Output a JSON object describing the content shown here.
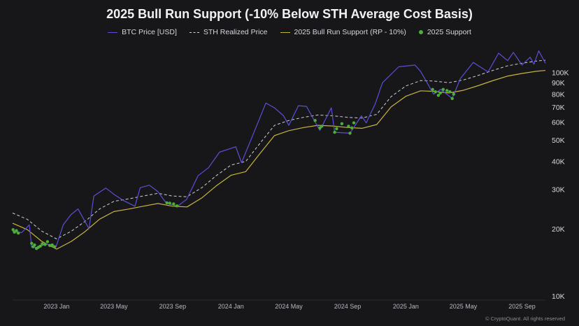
{
  "title": "2025 Bull Run Support (-10% Below STH Average Cost Basis)",
  "legend": {
    "price": "BTC Price [USD]",
    "sth": "STH Realized Price",
    "support": "2025 Bull Run Support (RP - 10%)",
    "dots": "2025 Support"
  },
  "watermark": "© CryptoQuant. All rights reserved",
  "colors": {
    "background": "#17171a",
    "price": "#5b4fd6",
    "sth": "#cfcfd6",
    "support": "#c8b43a",
    "dots": "#4caf3a"
  },
  "chart_data": {
    "type": "line",
    "y_scale": "log",
    "ylim": [
      10000,
      135000
    ],
    "xlim": [
      "2022-10-01",
      "2025-10-20"
    ],
    "grid": false,
    "legend_position": "top",
    "y_ticks": [
      {
        "value": 10000,
        "label": "10K"
      },
      {
        "value": 20000,
        "label": "20K"
      },
      {
        "value": 30000,
        "label": "30K"
      },
      {
        "value": 40000,
        "label": "40K"
      },
      {
        "value": 50000,
        "label": "50K"
      },
      {
        "value": 60000,
        "label": "60K"
      },
      {
        "value": 70000,
        "label": "70K"
      },
      {
        "value": 80000,
        "label": "80K"
      },
      {
        "value": 90000,
        "label": "90K"
      },
      {
        "value": 100000,
        "label": "100K"
      }
    ],
    "x_ticks": [
      {
        "date": "2023-01-01",
        "label": "2023 Jan"
      },
      {
        "date": "2023-05-01",
        "label": "2023 May"
      },
      {
        "date": "2023-09-01",
        "label": "2023 Sep"
      },
      {
        "date": "2024-01-01",
        "label": "2024 Jan"
      },
      {
        "date": "2024-05-01",
        "label": "2024 May"
      },
      {
        "date": "2024-09-01",
        "label": "2024 Sep"
      },
      {
        "date": "2025-01-01",
        "label": "2025 Jan"
      },
      {
        "date": "2025-05-01",
        "label": "2025 May"
      },
      {
        "date": "2025-09-01",
        "label": "2025 Sep"
      }
    ],
    "series": [
      {
        "name": "BTC Price [USD]",
        "points": [
          [
            "2022-10-01",
            19400
          ],
          [
            "2022-10-20",
            19200
          ],
          [
            "2022-11-05",
            20800
          ],
          [
            "2022-11-10",
            16500
          ],
          [
            "2022-11-25",
            16500
          ],
          [
            "2022-12-10",
            17100
          ],
          [
            "2022-12-31",
            16600
          ],
          [
            "2023-01-15",
            20800
          ],
          [
            "2023-01-31",
            23100
          ],
          [
            "2023-02-15",
            24500
          ],
          [
            "2023-03-10",
            20000
          ],
          [
            "2023-03-20",
            28000
          ],
          [
            "2023-04-14",
            30400
          ],
          [
            "2023-05-01",
            28500
          ],
          [
            "2023-05-20",
            26800
          ],
          [
            "2023-06-14",
            25200
          ],
          [
            "2023-06-25",
            30500
          ],
          [
            "2023-07-14",
            31300
          ],
          [
            "2023-08-01",
            29300
          ],
          [
            "2023-08-18",
            26100
          ],
          [
            "2023-09-11",
            25200
          ],
          [
            "2023-09-30",
            27000
          ],
          [
            "2023-10-24",
            34500
          ],
          [
            "2023-11-15",
            37500
          ],
          [
            "2023-12-08",
            44000
          ],
          [
            "2024-01-11",
            46500
          ],
          [
            "2024-01-23",
            39500
          ],
          [
            "2024-02-15",
            52000
          ],
          [
            "2024-03-14",
            73000
          ],
          [
            "2024-04-01",
            69500
          ],
          [
            "2024-04-20",
            64000
          ],
          [
            "2024-05-01",
            58000
          ],
          [
            "2024-05-21",
            71000
          ],
          [
            "2024-06-07",
            70500
          ],
          [
            "2024-07-05",
            55000
          ],
          [
            "2024-07-29",
            69500
          ],
          [
            "2024-08-05",
            54000
          ],
          [
            "2024-09-06",
            53500
          ],
          [
            "2024-09-30",
            64000
          ],
          [
            "2024-10-10",
            59500
          ],
          [
            "2024-10-29",
            72500
          ],
          [
            "2024-11-13",
            90000
          ],
          [
            "2024-12-17",
            106000
          ],
          [
            "2025-01-20",
            108000
          ],
          [
            "2025-02-01",
            101000
          ],
          [
            "2025-02-28",
            80000
          ],
          [
            "2025-03-15",
            84000
          ],
          [
            "2025-04-08",
            76500
          ],
          [
            "2025-04-25",
            94000
          ],
          [
            "2025-05-22",
            111000
          ],
          [
            "2025-06-22",
            100500
          ],
          [
            "2025-07-14",
            122000
          ],
          [
            "2025-08-02",
            113000
          ],
          [
            "2025-08-14",
            123000
          ],
          [
            "2025-09-01",
            108000
          ],
          [
            "2025-09-18",
            117000
          ],
          [
            "2025-09-26",
            109000
          ],
          [
            "2025-10-06",
            125000
          ],
          [
            "2025-10-20",
            110000
          ]
        ]
      },
      {
        "name": "STH Realized Price",
        "points": [
          [
            "2022-10-01",
            23500
          ],
          [
            "2022-11-01",
            22000
          ],
          [
            "2022-12-01",
            19500
          ],
          [
            "2023-01-01",
            18000
          ],
          [
            "2023-02-01",
            19500
          ],
          [
            "2023-03-01",
            21500
          ],
          [
            "2023-04-01",
            24500
          ],
          [
            "2023-05-01",
            26500
          ],
          [
            "2023-06-01",
            27200
          ],
          [
            "2023-07-01",
            28000
          ],
          [
            "2023-08-01",
            28800
          ],
          [
            "2023-09-01",
            28000
          ],
          [
            "2023-10-01",
            27800
          ],
          [
            "2023-11-01",
            30500
          ],
          [
            "2023-12-01",
            34500
          ],
          [
            "2024-01-01",
            38500
          ],
          [
            "2024-02-01",
            40000
          ],
          [
            "2024-03-01",
            48000
          ],
          [
            "2024-04-01",
            58000
          ],
          [
            "2024-05-01",
            61000
          ],
          [
            "2024-06-01",
            63000
          ],
          [
            "2024-07-01",
            64500
          ],
          [
            "2024-08-01",
            64000
          ],
          [
            "2024-09-01",
            63000
          ],
          [
            "2024-10-01",
            62500
          ],
          [
            "2024-11-01",
            65000
          ],
          [
            "2024-12-01",
            78000
          ],
          [
            "2025-01-01",
            87000
          ],
          [
            "2025-02-01",
            92000
          ],
          [
            "2025-03-01",
            91500
          ],
          [
            "2025-04-01",
            90000
          ],
          [
            "2025-05-01",
            92500
          ],
          [
            "2025-06-01",
            97000
          ],
          [
            "2025-07-01",
            102000
          ],
          [
            "2025-08-01",
            107000
          ],
          [
            "2025-09-01",
            110000
          ],
          [
            "2025-10-01",
            112500
          ],
          [
            "2025-10-20",
            113500
          ]
        ]
      },
      {
        "name": "2025 Bull Run Support (RP - 10%)",
        "points": [
          [
            "2022-10-01",
            21150
          ],
          [
            "2022-11-01",
            19800
          ],
          [
            "2022-12-01",
            17550
          ],
          [
            "2023-01-01",
            16200
          ],
          [
            "2023-02-01",
            17550
          ],
          [
            "2023-03-01",
            19350
          ],
          [
            "2023-04-01",
            22050
          ],
          [
            "2023-05-01",
            23850
          ],
          [
            "2023-06-01",
            24480
          ],
          [
            "2023-07-01",
            25200
          ],
          [
            "2023-08-01",
            25920
          ],
          [
            "2023-09-01",
            25200
          ],
          [
            "2023-10-01",
            25020
          ],
          [
            "2023-11-01",
            27450
          ],
          [
            "2023-12-01",
            31050
          ],
          [
            "2024-01-01",
            34650
          ],
          [
            "2024-02-01",
            36000
          ],
          [
            "2024-03-01",
            43200
          ],
          [
            "2024-04-01",
            52200
          ],
          [
            "2024-05-01",
            54900
          ],
          [
            "2024-06-01",
            56700
          ],
          [
            "2024-07-01",
            58050
          ],
          [
            "2024-08-01",
            57600
          ],
          [
            "2024-09-01",
            56700
          ],
          [
            "2024-10-01",
            56250
          ],
          [
            "2024-11-01",
            58500
          ],
          [
            "2024-12-01",
            70200
          ],
          [
            "2025-01-01",
            78300
          ],
          [
            "2025-02-01",
            82800
          ],
          [
            "2025-03-01",
            82350
          ],
          [
            "2025-04-01",
            81000
          ],
          [
            "2025-05-01",
            83250
          ],
          [
            "2025-06-01",
            87300
          ],
          [
            "2025-07-01",
            91800
          ],
          [
            "2025-08-01",
            96300
          ],
          [
            "2025-09-01",
            99000
          ],
          [
            "2025-10-01",
            101250
          ],
          [
            "2025-10-20",
            102150
          ]
        ]
      },
      {
        "name": "2025 Support",
        "points": [
          [
            "2022-10-02",
            19800
          ],
          [
            "2022-10-05",
            19300
          ],
          [
            "2022-10-09",
            19600
          ],
          [
            "2022-10-13",
            19100
          ],
          [
            "2022-11-10",
            17200
          ],
          [
            "2022-11-13",
            16600
          ],
          [
            "2022-11-16",
            16900
          ],
          [
            "2022-11-20",
            16300
          ],
          [
            "2022-11-24",
            16500
          ],
          [
            "2022-11-28",
            16700
          ],
          [
            "2022-12-02",
            17100
          ],
          [
            "2022-12-08",
            17000
          ],
          [
            "2022-12-13",
            17500
          ],
          [
            "2022-12-18",
            16800
          ],
          [
            "2022-12-23",
            16900
          ],
          [
            "2022-12-28",
            16600
          ],
          [
            "2023-08-20",
            26100
          ],
          [
            "2023-08-26",
            26000
          ],
          [
            "2023-09-03",
            25800
          ],
          [
            "2023-09-10",
            25300
          ],
          [
            "2024-06-25",
            61000
          ],
          [
            "2024-07-05",
            56500
          ],
          [
            "2024-07-09",
            57500
          ],
          [
            "2024-08-05",
            54000
          ],
          [
            "2024-08-09",
            56000
          ],
          [
            "2024-08-20",
            59000
          ],
          [
            "2024-09-03",
            57500
          ],
          [
            "2024-09-06",
            53500
          ],
          [
            "2024-09-10",
            56500
          ],
          [
            "2024-09-14",
            59500
          ],
          [
            "2025-02-26",
            84000
          ],
          [
            "2025-03-04",
            82000
          ],
          [
            "2025-03-10",
            79000
          ],
          [
            "2025-03-14",
            81000
          ],
          [
            "2025-03-20",
            84000
          ],
          [
            "2025-03-28",
            83000
          ],
          [
            "2025-04-03",
            82000
          ],
          [
            "2025-04-08",
            76500
          ],
          [
            "2025-04-11",
            80000
          ]
        ]
      }
    ]
  }
}
